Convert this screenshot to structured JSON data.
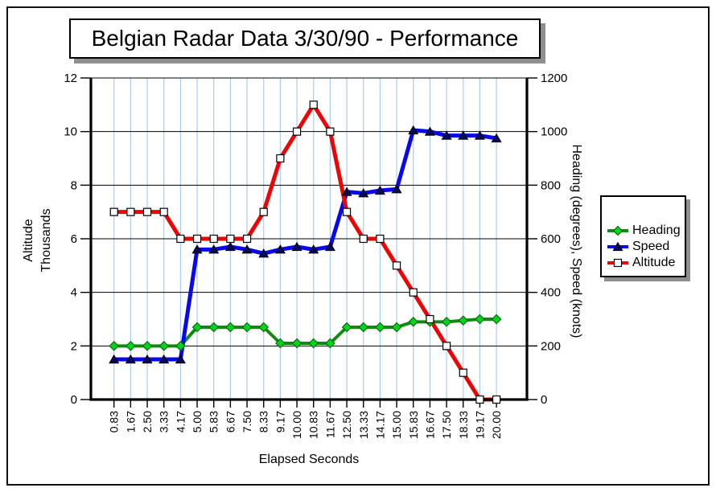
{
  "window": {
    "background": "#ffffff",
    "border_color": "#111111",
    "shadow_color": "#8f8f8f"
  },
  "title": {
    "text": "Belgian Radar Data 3/30/90 - Performance"
  },
  "axes": {
    "left": {
      "title_line1": "Altitude",
      "title_line2": "Thousands",
      "ticks": [
        "0",
        "2",
        "4",
        "6",
        "8",
        "10",
        "12"
      ]
    },
    "right": {
      "title": "Heading (degrees), Speed (knots)",
      "ticks": [
        "0",
        "200",
        "400",
        "600",
        "800",
        "1000",
        "1200"
      ]
    },
    "bottom": {
      "title": "Elapsed Seconds"
    }
  },
  "legend": {
    "entries": [
      "Heading",
      "Speed",
      "Altitude"
    ]
  },
  "chart_data": {
    "type": "line",
    "title": "Belgian Radar Data 3/30/90 - Performance",
    "xlabel": "Elapsed Seconds",
    "ylabel_left": "Altitude Thousands",
    "ylabel_right": "Heading (degrees), Speed (knots)",
    "x_categories": [
      "0.83",
      "1.67",
      "2.50",
      "3.33",
      "4.17",
      "5.00",
      "5.83",
      "6.67",
      "7.50",
      "8.33",
      "9.17",
      "10.00",
      "10.83",
      "11.67",
      "12.50",
      "13.33",
      "14.17",
      "15.00",
      "15.83",
      "16.67",
      "17.50",
      "18.33",
      "19.17",
      "20.00"
    ],
    "ylim_left": [
      0,
      12
    ],
    "ylim_right": [
      0,
      1200
    ],
    "left_tick_values": [
      0,
      2,
      4,
      6,
      8,
      10,
      12
    ],
    "right_tick_values": [
      0,
      200,
      400,
      600,
      800,
      1000,
      1200
    ],
    "grid": {
      "vertical_color": "#a9cdf0",
      "horizontal_color": "#000000"
    },
    "legend_position": "right",
    "series": [
      {
        "name": "Heading",
        "axis": "right",
        "marker": "diamond",
        "line_color": "#0e8c0e",
        "marker_fill": "#00d321",
        "marker_stroke": "#066d06",
        "line_width": 4,
        "values": [
          200,
          200,
          200,
          200,
          200,
          270,
          270,
          270,
          270,
          270,
          210,
          210,
          210,
          210,
          270,
          270,
          270,
          270,
          290,
          290,
          290,
          295,
          300,
          300
        ]
      },
      {
        "name": "Speed",
        "axis": "right",
        "marker": "triangle",
        "line_color": "#0807ee",
        "marker_fill": "#0a0a50",
        "marker_stroke": "#000020",
        "line_width": 5,
        "values": [
          150,
          150,
          150,
          150,
          150,
          560,
          560,
          570,
          560,
          545,
          560,
          570,
          560,
          570,
          775,
          770,
          780,
          785,
          1005,
          1000,
          985,
          985,
          985,
          975
        ]
      },
      {
        "name": "Altitude",
        "axis": "left",
        "marker": "square",
        "line_color": "#ee0404",
        "marker_fill": "#ffffff",
        "marker_stroke": "#000000",
        "line_width": 5,
        "values": [
          7,
          7,
          7,
          7,
          6,
          6,
          6,
          6,
          6,
          7,
          9,
          10,
          11,
          10,
          7,
          6,
          6,
          5,
          4,
          3,
          2,
          1,
          0,
          0
        ]
      }
    ]
  }
}
